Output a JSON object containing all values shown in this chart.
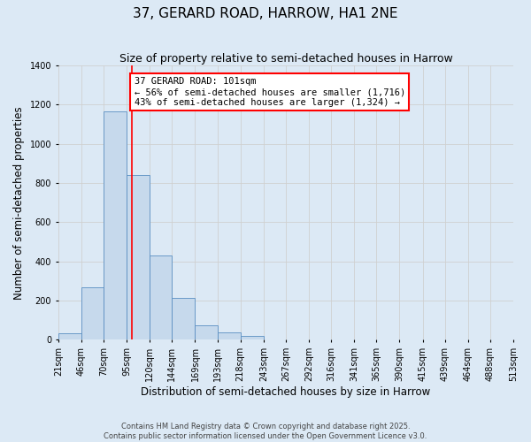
{
  "title": "37, GERARD ROAD, HARROW, HA1 2NE",
  "subtitle": "Size of property relative to semi-detached houses in Harrow",
  "xlabel": "Distribution of semi-detached houses by size in Harrow",
  "ylabel": "Number of semi-detached properties",
  "property_label": "37 GERARD ROAD: 101sqm",
  "annotation_line1": "← 56% of semi-detached houses are smaller (1,716)",
  "annotation_line2": "43% of semi-detached houses are larger (1,324) →",
  "property_value": 101,
  "bin_edges": [
    21,
    46,
    70,
    95,
    120,
    144,
    169,
    193,
    218,
    243,
    267,
    292,
    316,
    341,
    365,
    390,
    415,
    439,
    464,
    488,
    513
  ],
  "bin_labels": [
    "21sqm",
    "46sqm",
    "70sqm",
    "95sqm",
    "120sqm",
    "144sqm",
    "169sqm",
    "193sqm",
    "218sqm",
    "243sqm",
    "267sqm",
    "292sqm",
    "316sqm",
    "341sqm",
    "365sqm",
    "390sqm",
    "415sqm",
    "439sqm",
    "464sqm",
    "488sqm",
    "513sqm"
  ],
  "counts": [
    35,
    270,
    1165,
    840,
    430,
    215,
    75,
    40,
    20,
    0,
    0,
    0,
    0,
    0,
    0,
    0,
    0,
    0,
    0,
    0
  ],
  "bar_color": "#c6d9ec",
  "bar_edge_color": "#5a8fc2",
  "vline_color": "red",
  "vline_x": 101,
  "ylim": [
    0,
    1400
  ],
  "yticks": [
    0,
    200,
    400,
    600,
    800,
    1000,
    1200,
    1400
  ],
  "grid_color": "#d0d0d0",
  "background_color": "#dce9f5",
  "box_color": "red",
  "footer_line1": "Contains HM Land Registry data © Crown copyright and database right 2025.",
  "footer_line2": "Contains public sector information licensed under the Open Government Licence v3.0.",
  "title_fontsize": 11,
  "subtitle_fontsize": 9,
  "axis_label_fontsize": 8.5,
  "tick_fontsize": 7,
  "annotation_fontsize": 7.5,
  "footer_fontsize": 6
}
